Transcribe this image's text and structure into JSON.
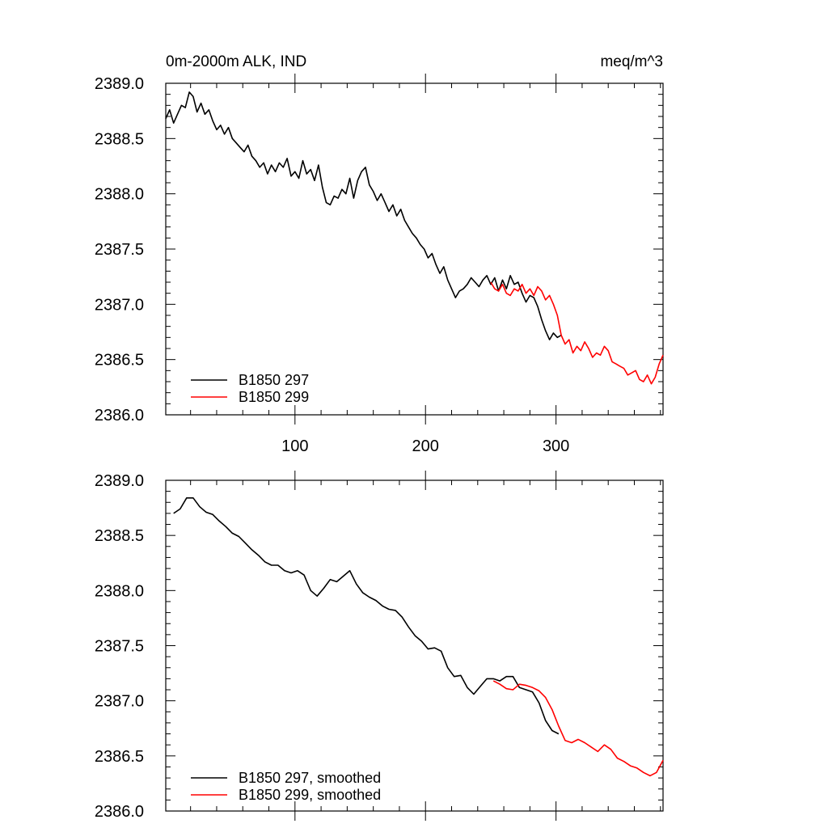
{
  "chart_data": [
    {
      "type": "line",
      "title": "0m-2000m ALK, IND",
      "units": "meq/m^3",
      "xlim": [
        1,
        382
      ],
      "ylim": [
        2386.0,
        2389.0
      ],
      "x_ticks": [
        100,
        200,
        300
      ],
      "x_tick_labels": [
        "100",
        "200",
        "300"
      ],
      "y_ticks": [
        2386.0,
        2386.5,
        2387.0,
        2387.5,
        2388.0,
        2388.5,
        2389.0
      ],
      "y_tick_labels": [
        "2386.0",
        "2386.5",
        "2387.0",
        "2387.5",
        "2388.0",
        "2388.5",
        "2389.0"
      ],
      "grid": false,
      "legend_position": "bottom-left",
      "series": [
        {
          "name": "B1850 297",
          "color": "#000000",
          "x": [
            1,
            4,
            7,
            10,
            13,
            16,
            19,
            22,
            25,
            28,
            31,
            34,
            37,
            40,
            43,
            46,
            49,
            52,
            55,
            58,
            61,
            64,
            67,
            70,
            73,
            76,
            79,
            82,
            85,
            88,
            91,
            94,
            97,
            100,
            103,
            106,
            109,
            112,
            115,
            118,
            121,
            124,
            127,
            130,
            133,
            136,
            139,
            142,
            145,
            148,
            151,
            154,
            157,
            160,
            163,
            166,
            169,
            172,
            175,
            178,
            181,
            184,
            187,
            190,
            193,
            196,
            199,
            202,
            205,
            208,
            211,
            214,
            217,
            220,
            223,
            226,
            229,
            232,
            235,
            238,
            241,
            244,
            247,
            250,
            253,
            256,
            259,
            262,
            265,
            268,
            271,
            274,
            277,
            280,
            283,
            286,
            289,
            292,
            295,
            298,
            301,
            304
          ],
          "y": [
            2388.68,
            2388.76,
            2388.64,
            2388.72,
            2388.8,
            2388.78,
            2388.92,
            2388.88,
            2388.74,
            2388.82,
            2388.72,
            2388.76,
            2388.66,
            2388.58,
            2388.62,
            2388.54,
            2388.6,
            2388.5,
            2388.46,
            2388.42,
            2388.38,
            2388.44,
            2388.34,
            2388.3,
            2388.24,
            2388.28,
            2388.18,
            2388.26,
            2388.2,
            2388.28,
            2388.24,
            2388.32,
            2388.16,
            2388.2,
            2388.14,
            2388.3,
            2388.18,
            2388.22,
            2388.12,
            2388.26,
            2388.06,
            2387.92,
            2387.9,
            2387.98,
            2387.96,
            2388.04,
            2388.0,
            2388.14,
            2387.96,
            2388.12,
            2388.2,
            2388.24,
            2388.08,
            2388.02,
            2387.94,
            2388.0,
            2387.92,
            2387.84,
            2387.9,
            2387.8,
            2387.86,
            2387.76,
            2387.7,
            2387.64,
            2387.6,
            2387.54,
            2387.5,
            2387.42,
            2387.46,
            2387.36,
            2387.28,
            2387.34,
            2387.22,
            2387.14,
            2387.06,
            2387.12,
            2387.14,
            2387.18,
            2387.24,
            2387.2,
            2387.16,
            2387.22,
            2387.26,
            2387.18,
            2387.24,
            2387.12,
            2387.22,
            2387.14,
            2387.26,
            2387.18,
            2387.2,
            2387.1,
            2387.02,
            2387.08,
            2387.06,
            2386.98,
            2386.86,
            2386.76,
            2386.68,
            2386.74,
            2386.7,
            2386.72
          ]
        },
        {
          "name": "B1850 299",
          "color": "#ff0000",
          "x": [
            250,
            253,
            256,
            259,
            262,
            265,
            268,
            271,
            274,
            277,
            280,
            283,
            286,
            289,
            292,
            295,
            298,
            301,
            304,
            307,
            310,
            313,
            316,
            319,
            322,
            325,
            328,
            331,
            334,
            337,
            340,
            343,
            346,
            349,
            352,
            355,
            358,
            361,
            364,
            367,
            370,
            373,
            376,
            379,
            382
          ],
          "y": [
            2387.2,
            2387.14,
            2387.12,
            2387.18,
            2387.1,
            2387.08,
            2387.14,
            2387.12,
            2387.18,
            2387.1,
            2387.14,
            2387.08,
            2387.16,
            2387.12,
            2387.04,
            2387.08,
            2387.0,
            2386.9,
            2386.72,
            2386.64,
            2386.68,
            2386.56,
            2386.62,
            2386.58,
            2386.66,
            2386.6,
            2386.52,
            2386.56,
            2386.54,
            2386.62,
            2386.58,
            2386.48,
            2386.46,
            2386.44,
            2386.42,
            2386.36,
            2386.38,
            2386.4,
            2386.32,
            2386.3,
            2386.36,
            2386.28,
            2386.34,
            2386.46,
            2386.54
          ]
        }
      ]
    },
    {
      "type": "line",
      "xlim": [
        1,
        382
      ],
      "ylim": [
        2386.0,
        2389.0
      ],
      "x_ticks": [
        100,
        200,
        300
      ],
      "y_ticks": [
        2386.0,
        2386.5,
        2387.0,
        2387.5,
        2388.0,
        2388.5,
        2389.0
      ],
      "y_tick_labels": [
        "2386.0",
        "2386.5",
        "2387.0",
        "2387.5",
        "2388.0",
        "2388.5",
        "2389.0"
      ],
      "grid": false,
      "legend_position": "bottom-left",
      "series": [
        {
          "name": "B1850 297, smoothed",
          "color": "#000000",
          "x": [
            7,
            12,
            17,
            22,
            27,
            32,
            37,
            42,
            47,
            52,
            57,
            62,
            67,
            72,
            77,
            82,
            87,
            92,
            97,
            102,
            107,
            112,
            117,
            122,
            127,
            132,
            137,
            142,
            147,
            152,
            157,
            162,
            167,
            172,
            177,
            182,
            187,
            192,
            197,
            202,
            207,
            212,
            217,
            222,
            227,
            232,
            237,
            242,
            247,
            252,
            257,
            262,
            267,
            272,
            277,
            282,
            287,
            292,
            297,
            302
          ],
          "y": [
            2388.7,
            2388.74,
            2388.84,
            2388.84,
            2388.76,
            2388.71,
            2388.69,
            2388.63,
            2388.58,
            2388.52,
            2388.49,
            2388.43,
            2388.37,
            2388.32,
            2388.26,
            2388.23,
            2388.23,
            2388.18,
            2388.16,
            2388.18,
            2388.14,
            2388.0,
            2387.95,
            2388.02,
            2388.1,
            2388.08,
            2388.13,
            2388.18,
            2388.06,
            2387.98,
            2387.94,
            2387.91,
            2387.86,
            2387.83,
            2387.82,
            2387.76,
            2387.67,
            2387.59,
            2387.54,
            2387.47,
            2387.48,
            2387.45,
            2387.3,
            2387.22,
            2387.23,
            2387.12,
            2387.06,
            2387.13,
            2387.2,
            2387.2,
            2387.18,
            2387.22,
            2387.22,
            2387.12,
            2387.1,
            2387.08,
            2386.98,
            2386.82,
            2386.73,
            2386.7
          ]
        },
        {
          "name": "B1850 299, smoothed",
          "color": "#ff0000",
          "x": [
            252,
            257,
            262,
            267,
            272,
            277,
            282,
            287,
            292,
            297,
            302,
            307,
            312,
            317,
            322,
            327,
            332,
            337,
            342,
            347,
            352,
            357,
            362,
            367,
            372,
            377,
            382
          ],
          "y": [
            2387.18,
            2387.15,
            2387.11,
            2387.1,
            2387.15,
            2387.14,
            2387.12,
            2387.09,
            2387.03,
            2386.92,
            2386.77,
            2386.64,
            2386.62,
            2386.65,
            2386.62,
            2386.58,
            2386.54,
            2386.6,
            2386.56,
            2386.48,
            2386.45,
            2386.41,
            2386.39,
            2386.35,
            2386.32,
            2386.35,
            2386.46
          ]
        }
      ]
    }
  ]
}
